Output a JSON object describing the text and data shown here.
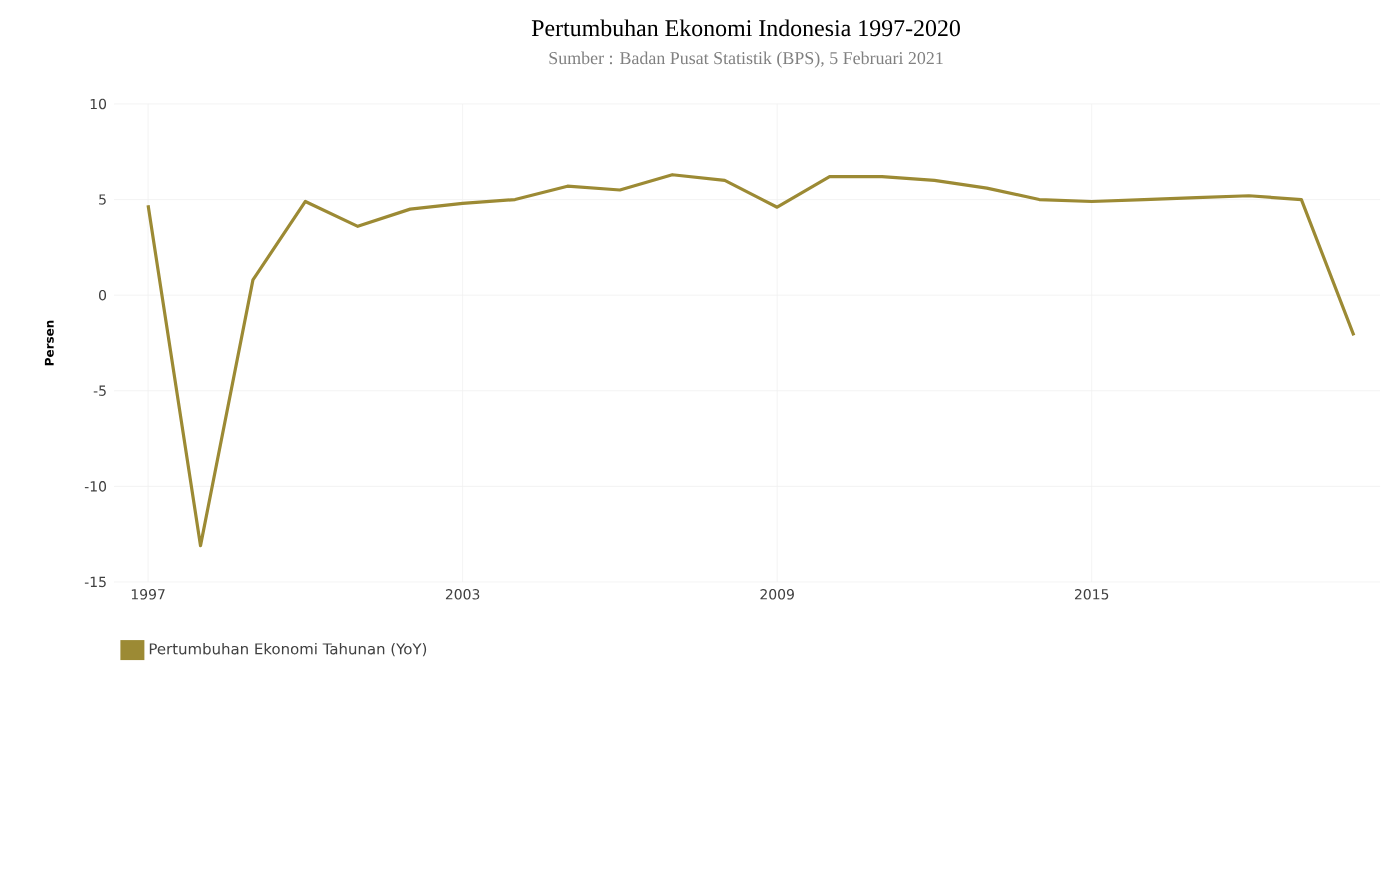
{
  "chart_data": {
    "type": "line",
    "title": "Pertumbuhan Ekonomi Indonesia 1997-2020",
    "subtitle": "Sumber : Badan Pusat Statistik (BPS), 5 Februari 2021",
    "ylabel": "Persen",
    "x": [
      1997,
      1998,
      1999,
      2000,
      2001,
      2002,
      2003,
      2004,
      2005,
      2006,
      2007,
      2008,
      2009,
      2010,
      2011,
      2012,
      2013,
      2014,
      2015,
      2016,
      2017,
      2018,
      2019,
      2020
    ],
    "series": [
      {
        "name": "Pertumbuhan Ekonomi Tahunan (YoY)",
        "color": "#9c8a34",
        "values": [
          4.7,
          -13.1,
          0.8,
          4.9,
          3.6,
          4.5,
          4.8,
          5.0,
          5.7,
          5.5,
          6.3,
          6.0,
          4.6,
          6.2,
          6.2,
          6.0,
          5.6,
          5.0,
          4.9,
          5.0,
          5.1,
          5.2,
          5.0,
          -2.1
        ]
      }
    ],
    "xlim": [
      1996.35,
      2020.5
    ],
    "ylim": [
      -15,
      10
    ],
    "xticks": [
      1997,
      2003,
      2009,
      2015
    ],
    "yticks": [
      -15,
      -10,
      -5,
      0,
      5,
      10
    ],
    "grid": true,
    "legend": "bottom left",
    "marker": "none",
    "line_style": "solid"
  }
}
